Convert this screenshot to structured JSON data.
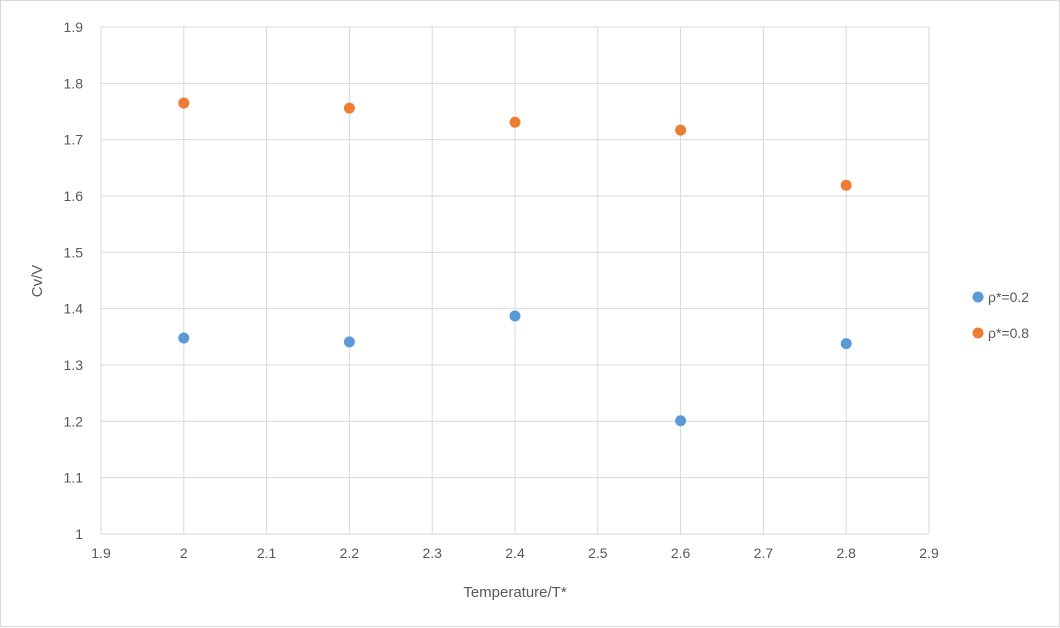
{
  "chart_data": {
    "type": "scatter",
    "title": "",
    "xlabel": "Temperature/T*",
    "ylabel": "Cv/V",
    "xlim": [
      1.9,
      2.9
    ],
    "ylim": [
      1,
      1.9
    ],
    "x_ticks": [
      "1.9",
      "2",
      "2.1",
      "2.2",
      "2.3",
      "2.4",
      "2.5",
      "2.6",
      "2.7",
      "2.8",
      "2.9"
    ],
    "y_ticks": [
      "1",
      "1.1",
      "1.2",
      "1.3",
      "1.4",
      "1.5",
      "1.6",
      "1.7",
      "1.8",
      "1.9"
    ],
    "grid": true,
    "legend_position": "right",
    "series": [
      {
        "name": "ρ*=0.2",
        "color": "#5b9bd5",
        "x": [
          2.0,
          2.2,
          2.4,
          2.6,
          2.8
        ],
        "y": [
          1.348,
          1.341,
          1.387,
          1.201,
          1.338
        ]
      },
      {
        "name": "ρ*=0.8",
        "color": "#ed7d31",
        "x": [
          2.0,
          2.2,
          2.4,
          2.6,
          2.8
        ],
        "y": [
          1.765,
          1.756,
          1.731,
          1.717,
          1.619
        ]
      }
    ]
  }
}
